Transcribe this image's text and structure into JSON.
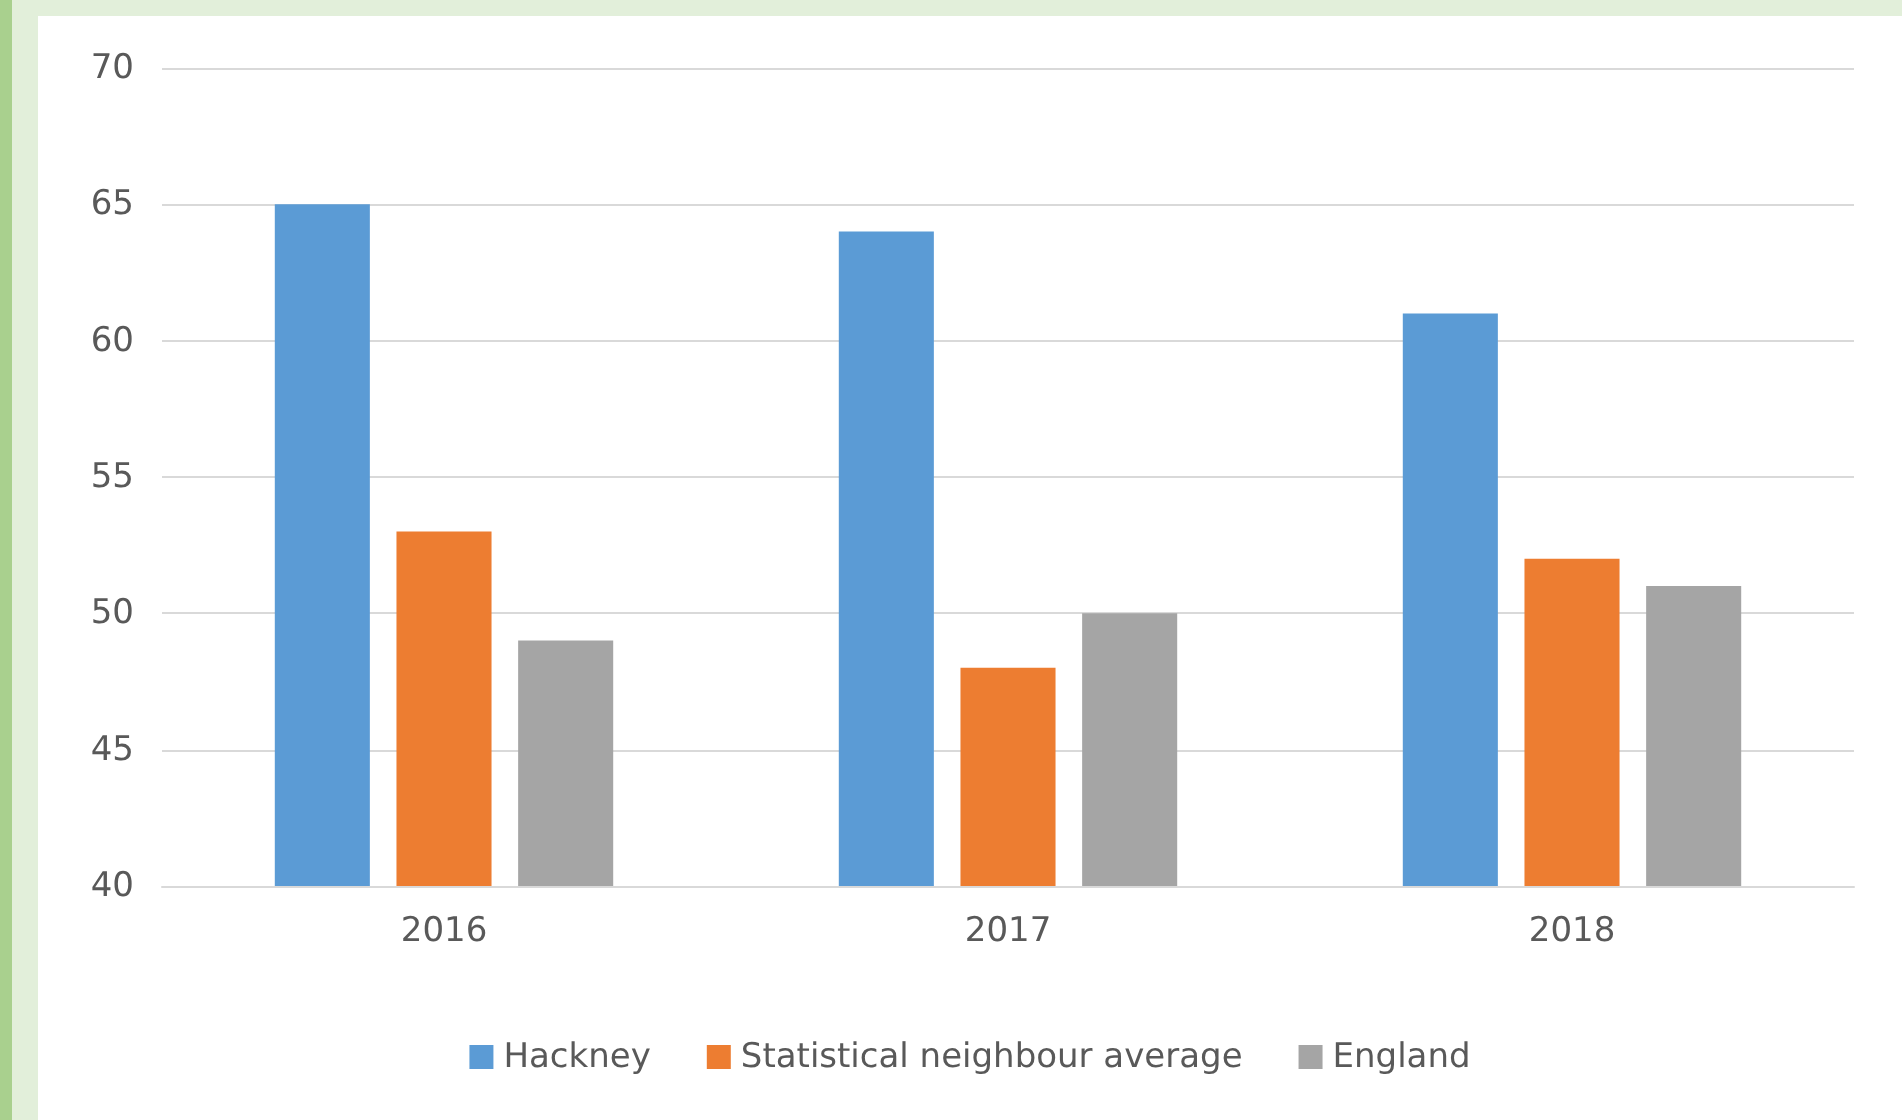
{
  "chart_data": {
    "type": "bar",
    "categories": [
      "2016",
      "2017",
      "2018"
    ],
    "series": [
      {
        "name": "Hackney",
        "color": "#5b9bd5",
        "values": [
          65,
          64,
          61
        ]
      },
      {
        "name": "Statistical neighbour average",
        "color": "#ed7d31",
        "values": [
          53,
          48,
          52
        ]
      },
      {
        "name": "England",
        "color": "#a5a5a5",
        "values": [
          49,
          50,
          51
        ]
      }
    ],
    "ylim": [
      40,
      70
    ],
    "yticks": [
      40,
      45,
      50,
      55,
      60,
      65,
      70
    ],
    "grid": "y",
    "legend": "bottom"
  }
}
